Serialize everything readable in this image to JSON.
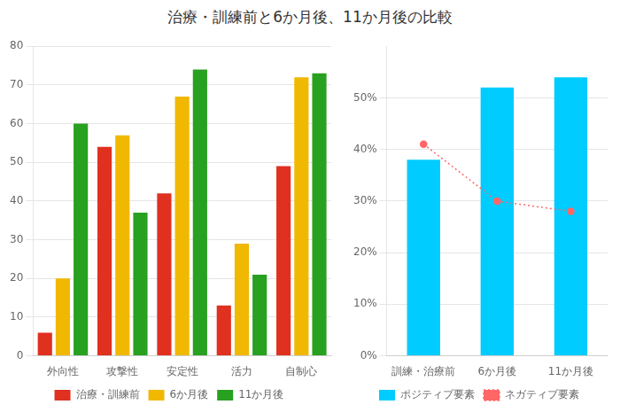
{
  "title": "治療・訓練前と6か月後、11か月後の比較",
  "chart_data": [
    {
      "type": "bar",
      "categories": [
        "外向性",
        "攻撃性",
        "安定性",
        "活力",
        "自制心"
      ],
      "series": [
        {
          "name": "治療・訓練前",
          "color": "#e03020",
          "values": [
            6,
            54,
            42,
            13,
            49
          ]
        },
        {
          "name": "6か月後",
          "color": "#f0b800",
          "values": [
            20,
            57,
            67,
            29,
            72
          ]
        },
        {
          "name": "11か月後",
          "color": "#28a020",
          "values": [
            60,
            37,
            74,
            21,
            73
          ]
        }
      ],
      "ylim": [
        0,
        80
      ],
      "yticks": [
        0,
        10,
        20,
        30,
        40,
        50,
        60,
        70,
        80
      ],
      "grid": true,
      "legend": "bottom"
    },
    {
      "type": "bar",
      "categories": [
        "訓練・治療前",
        "6か月後",
        "11か月後"
      ],
      "series": [
        {
          "name": "ポジティブ要素",
          "type": "bar",
          "color": "#00ccff",
          "values": [
            0.38,
            0.52,
            0.54
          ]
        },
        {
          "name": "ネガティブ要素",
          "type": "line",
          "color": "#ff6666",
          "line_style": "dotted",
          "marker": "circle",
          "values": [
            0.41,
            0.3,
            0.28
          ]
        }
      ],
      "ylim": [
        0,
        0.6
      ],
      "yticks": [
        {
          "value": 0.0,
          "label": "0%"
        },
        {
          "value": 0.1,
          "label": "10%"
        },
        {
          "value": 0.2,
          "label": "20%"
        },
        {
          "value": 0.3,
          "label": "30%"
        },
        {
          "value": 0.4,
          "label": "40%"
        },
        {
          "value": 0.5,
          "label": "50%"
        }
      ],
      "grid": true,
      "legend": "bottom"
    }
  ]
}
